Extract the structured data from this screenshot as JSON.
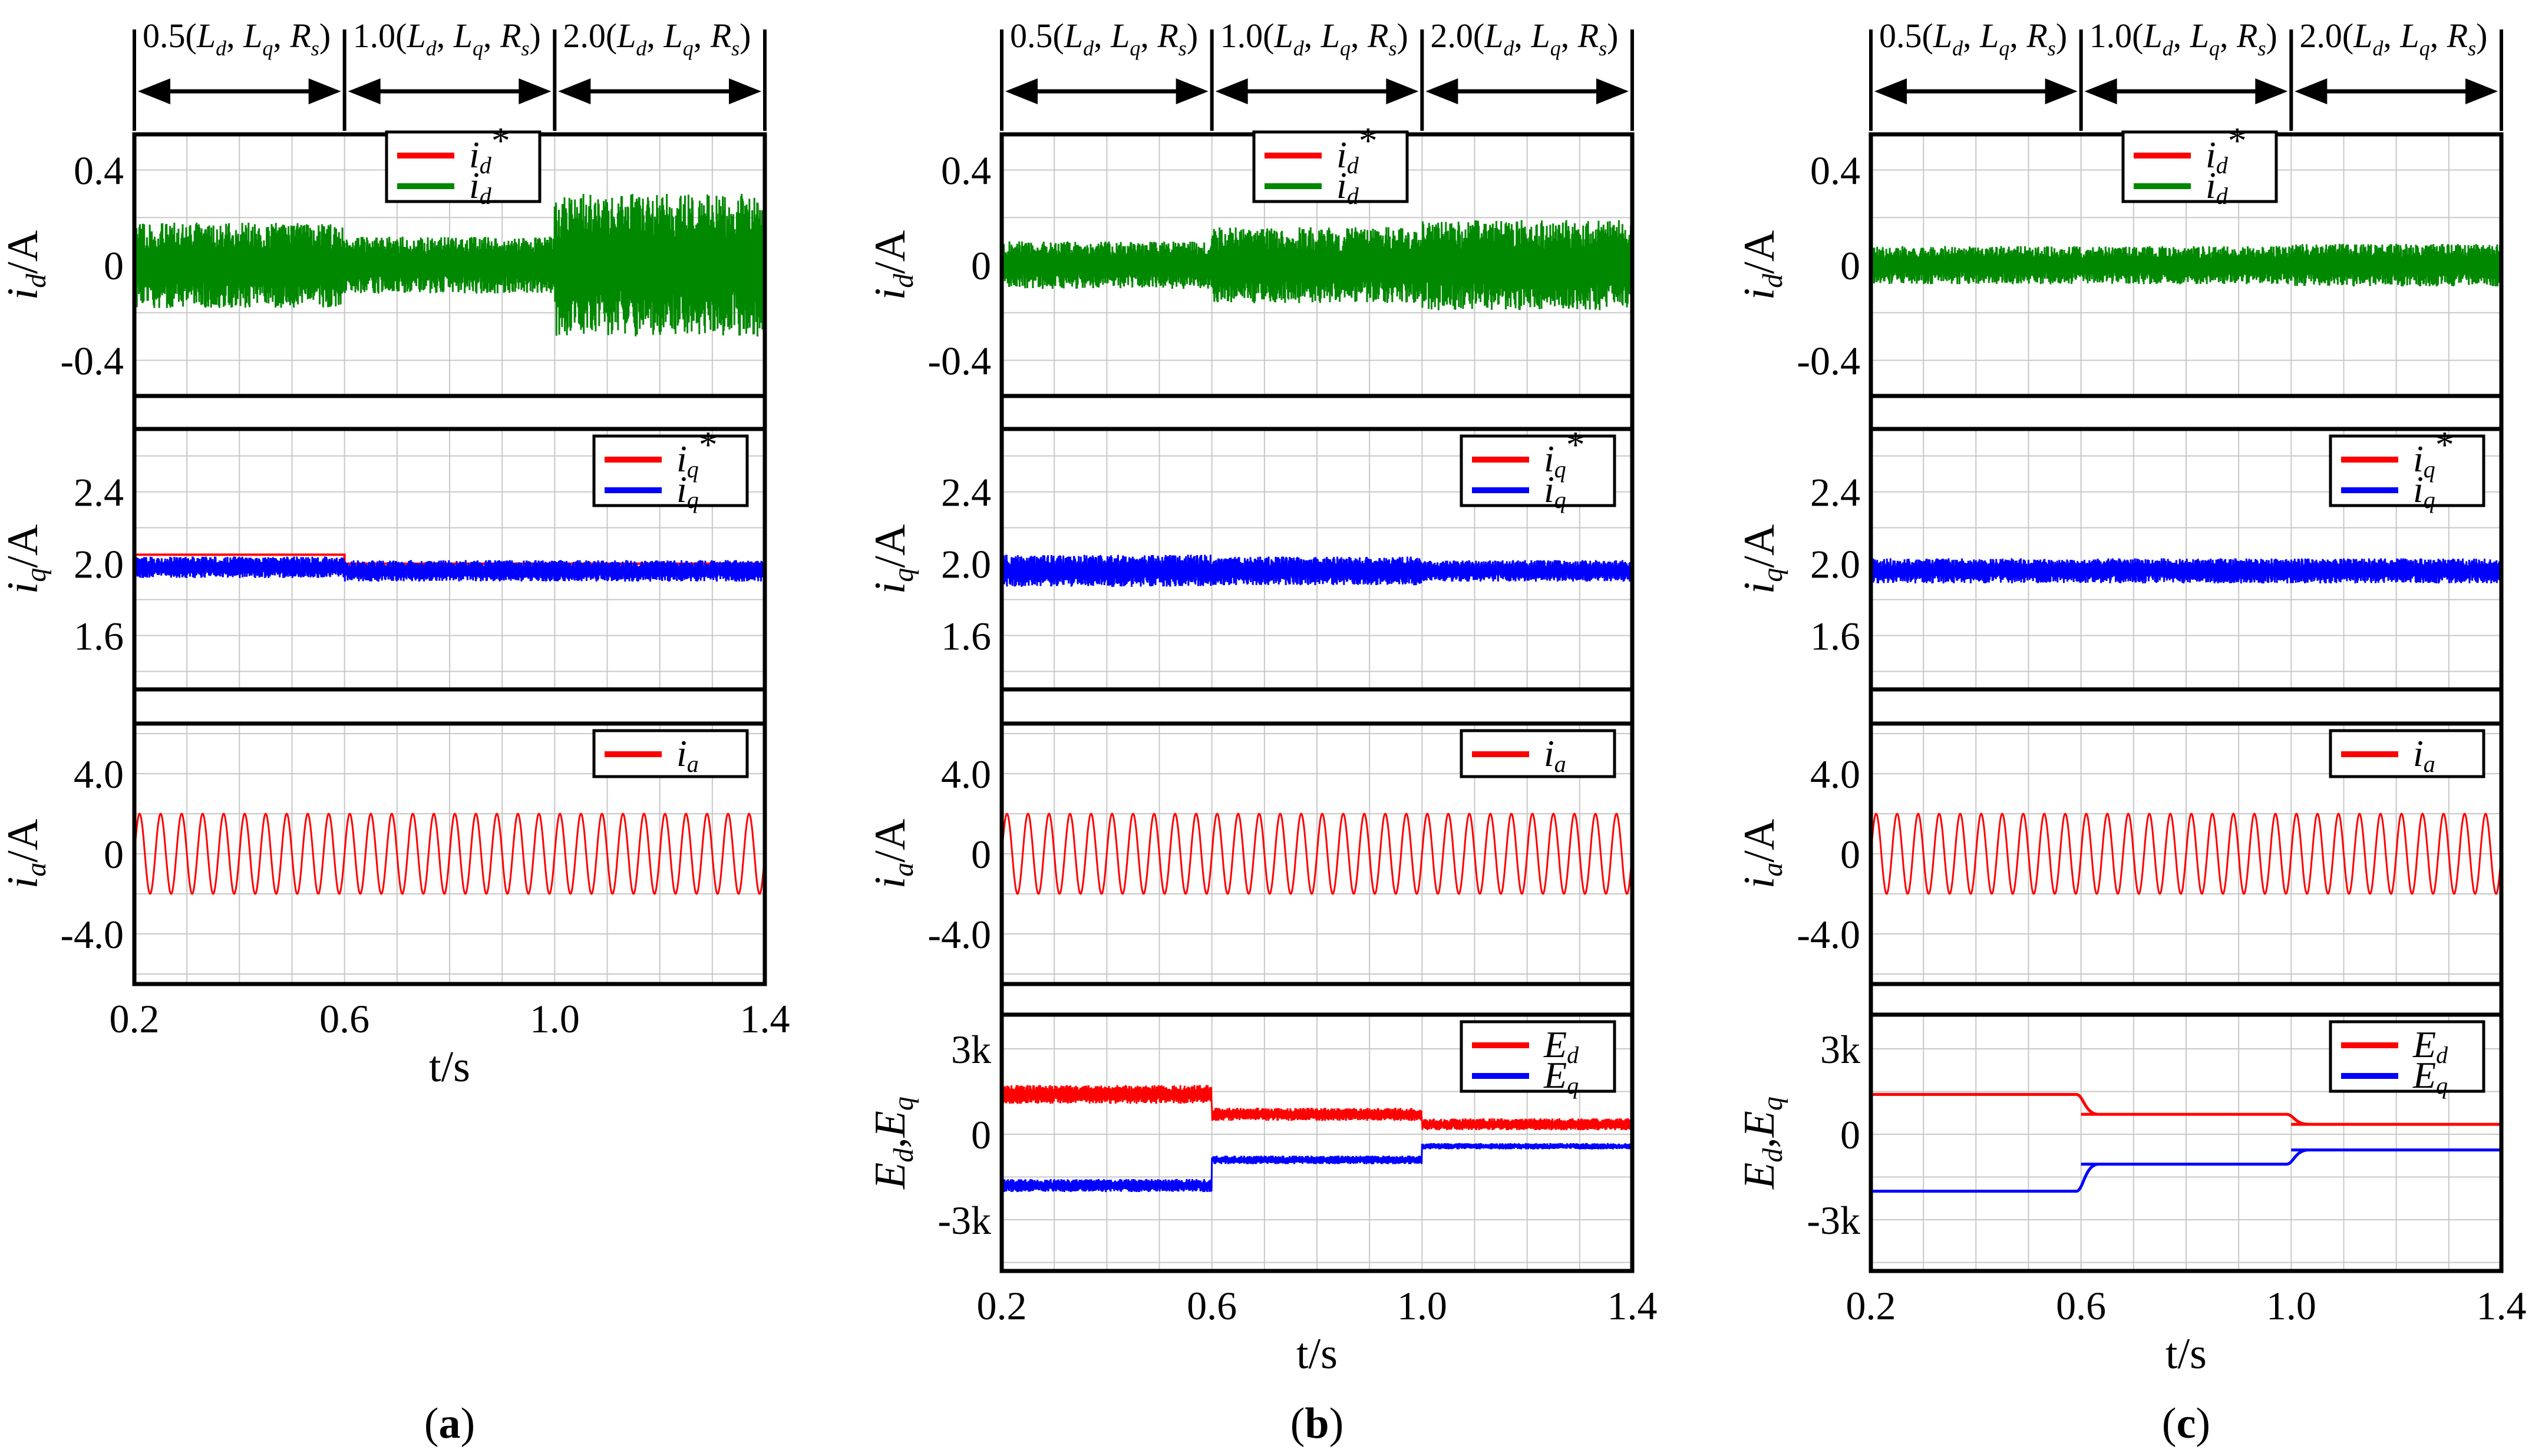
{
  "colors": {
    "red": "#ff0000",
    "green": "#008800",
    "blue": "#0000ff",
    "grid": "#c8c8c8"
  },
  "panel_labels": [
    "a",
    "b",
    "c"
  ],
  "annotations": {
    "seg1": "0.5(",
    "seg2": "1.0(",
    "seg3": "2.0(",
    "params": [
      "L",
      "d",
      ", ",
      "L",
      "q",
      ", ",
      "R",
      "s",
      ")"
    ]
  },
  "chart_data": [
    {
      "panel": "a",
      "type": "line",
      "x_label": "t/s",
      "x_ticks": [
        "0.2",
        "0.6",
        "1.0",
        "1.4"
      ],
      "xlim": [
        0.2,
        1.4
      ],
      "segments": [
        "0.5(Ld, Lq, Rs)",
        "1.0(Ld, Lq, Rs)",
        "2.0(Ld, Lq, Rs)"
      ],
      "subplots": [
        {
          "ylabel_main": "i",
          "ylabel_sub": "d",
          "ylabel_unit": "/A",
          "ylim": [
            -0.55,
            0.55
          ],
          "y_ticks": [
            "0.4",
            "0",
            "-0.4"
          ],
          "y_tick_values": [
            0.4,
            0,
            -0.4
          ],
          "legend": [
            {
              "name": "id*",
              "base": "i",
              "sub": "d",
              "sup": "*",
              "color": "red"
            },
            {
              "name": "id",
              "base": "i",
              "sub": "d",
              "sup": "",
              "color": "green"
            }
          ],
          "series": [
            {
              "name": "id*",
              "kind": "step",
              "color": "red",
              "levels": [
                0,
                0,
                0
              ]
            },
            {
              "name": "id",
              "kind": "noise",
              "color": "green",
              "means": [
                0,
                0,
                0
              ],
              "amps": [
                0.18,
                0.12,
                0.3
              ]
            }
          ]
        },
        {
          "ylabel_main": "i",
          "ylabel_sub": "q",
          "ylabel_unit": "/A",
          "ylim": [
            1.3,
            2.75
          ],
          "y_ticks": [
            "2.4",
            "2.0",
            "1.6"
          ],
          "y_tick_values": [
            2.4,
            2.0,
            1.6
          ],
          "legend": [
            {
              "name": "iq*",
              "base": "i",
              "sub": "q",
              "sup": "*",
              "color": "red"
            },
            {
              "name": "iq",
              "base": "i",
              "sub": "q",
              "sup": "",
              "color": "blue"
            }
          ],
          "series": [
            {
              "name": "iq*",
              "kind": "step",
              "color": "red",
              "levels": [
                2.05,
                2.0,
                2.0
              ]
            },
            {
              "name": "iq",
              "kind": "noise",
              "color": "blue",
              "means": [
                1.98,
                1.96,
                1.96
              ],
              "amps": [
                0.06,
                0.06,
                0.06
              ]
            }
          ]
        },
        {
          "ylabel_main": "i",
          "ylabel_sub": "a",
          "ylabel_unit": "/A",
          "ylim": [
            -6.5,
            6.5
          ],
          "y_ticks": [
            "4.0",
            "0",
            "-4.0"
          ],
          "y_tick_values": [
            4,
            0,
            -4
          ],
          "legend": [
            {
              "name": "ia",
              "base": "i",
              "sub": "a",
              "sup": "",
              "color": "red"
            }
          ],
          "series": [
            {
              "name": "ia",
              "kind": "sine",
              "color": "red",
              "amplitude": 2.0,
              "cycles": 30
            }
          ]
        }
      ]
    },
    {
      "panel": "b",
      "type": "line",
      "x_label": "t/s",
      "x_ticks": [
        "0.2",
        "0.6",
        "1.0",
        "1.4"
      ],
      "xlim": [
        0.2,
        1.4
      ],
      "segments": [
        "0.5(Ld, Lq, Rs)",
        "1.0(Ld, Lq, Rs)",
        "2.0(Ld, Lq, Rs)"
      ],
      "subplots": [
        {
          "ylabel_main": "i",
          "ylabel_sub": "d",
          "ylabel_unit": "/A",
          "ylim": [
            -0.55,
            0.55
          ],
          "y_ticks": [
            "0.4",
            "0",
            "-0.4"
          ],
          "y_tick_values": [
            0.4,
            0,
            -0.4
          ],
          "legend": [
            {
              "name": "id*",
              "base": "i",
              "sub": "d",
              "sup": "*",
              "color": "red"
            },
            {
              "name": "id",
              "base": "i",
              "sub": "d",
              "sup": "",
              "color": "green"
            }
          ],
          "series": [
            {
              "name": "id*",
              "kind": "step",
              "color": "red",
              "levels": [
                0,
                0,
                0
              ]
            },
            {
              "name": "id",
              "kind": "noise",
              "color": "green",
              "means": [
                0,
                0,
                0
              ],
              "amps": [
                0.1,
                0.16,
                0.19
              ]
            }
          ]
        },
        {
          "ylabel_main": "i",
          "ylabel_sub": "q",
          "ylabel_unit": "/A",
          "ylim": [
            1.3,
            2.75
          ],
          "y_ticks": [
            "2.4",
            "2.0",
            "1.6"
          ],
          "y_tick_values": [
            2.4,
            2.0,
            1.6
          ],
          "legend": [
            {
              "name": "iq*",
              "base": "i",
              "sub": "q",
              "sup": "*",
              "color": "red"
            },
            {
              "name": "iq",
              "base": "i",
              "sub": "q",
              "sup": "",
              "color": "blue"
            }
          ],
          "series": [
            {
              "name": "iq*",
              "kind": "step",
              "color": "red",
              "levels": [
                1.97,
                1.97,
                1.97
              ]
            },
            {
              "name": "iq",
              "kind": "noise",
              "color": "blue",
              "means": [
                1.96,
                1.96,
                1.96
              ],
              "amps": [
                0.09,
                0.08,
                0.06
              ]
            }
          ]
        },
        {
          "ylabel_main": "i",
          "ylabel_sub": "a",
          "ylabel_unit": "/A",
          "ylim": [
            -6.5,
            6.5
          ],
          "y_ticks": [
            "4.0",
            "0",
            "-4.0"
          ],
          "y_tick_values": [
            4,
            0,
            -4
          ],
          "legend": [
            {
              "name": "ia",
              "base": "i",
              "sub": "a",
              "sup": "",
              "color": "red"
            }
          ],
          "series": [
            {
              "name": "ia",
              "kind": "sine",
              "color": "red",
              "amplitude": 2.0,
              "cycles": 30
            }
          ]
        },
        {
          "ylabel_main": "E",
          "ylabel_sub": "d",
          "ylabel_main2": "E",
          "ylabel_sub2": "q",
          "ylabel_unit": "",
          "ylim": [
            -4800,
            4200
          ],
          "y_ticks": [
            "3k",
            "0",
            "-3k"
          ],
          "y_tick_values": [
            3000,
            0,
            -3000
          ],
          "legend": [
            {
              "name": "Ed",
              "base": "E",
              "sub": "d",
              "sup": "",
              "color": "red"
            },
            {
              "name": "Eq",
              "base": "E",
              "sub": "q",
              "sup": "",
              "color": "blue"
            }
          ],
          "series": [
            {
              "name": "Ed",
              "kind": "noise",
              "color": "red",
              "means": [
                1400,
                700,
                350
              ],
              "amps": [
                330,
                230,
                210
              ]
            },
            {
              "name": "Eq",
              "kind": "noise",
              "color": "blue",
              "means": [
                -1800,
                -900,
                -420
              ],
              "amps": [
                230,
                150,
                110
              ]
            }
          ]
        }
      ]
    },
    {
      "panel": "c",
      "type": "line",
      "x_label": "t/s",
      "x_ticks": [
        "0.2",
        "0.6",
        "1.0",
        "1.4"
      ],
      "xlim": [
        0.2,
        1.4
      ],
      "segments": [
        "0.5(Ld, Lq, Rs)",
        "1.0(Ld, Lq, Rs)",
        "2.0(Ld, Lq, Rs)"
      ],
      "subplots": [
        {
          "ylabel_main": "i",
          "ylabel_sub": "d",
          "ylabel_unit": "/A",
          "ylim": [
            -0.55,
            0.55
          ],
          "y_ticks": [
            "0.4",
            "0",
            "-0.4"
          ],
          "y_tick_values": [
            0.4,
            0,
            -0.4
          ],
          "legend": [
            {
              "name": "id*",
              "base": "i",
              "sub": "d",
              "sup": "*",
              "color": "red"
            },
            {
              "name": "id",
              "base": "i",
              "sub": "d",
              "sup": "",
              "color": "green"
            }
          ],
          "series": [
            {
              "name": "id*",
              "kind": "step",
              "color": "red",
              "levels": [
                0,
                0,
                0
              ]
            },
            {
              "name": "id",
              "kind": "noise",
              "color": "green",
              "means": [
                0,
                0,
                0
              ],
              "amps": [
                0.08,
                0.08,
                0.09
              ]
            }
          ]
        },
        {
          "ylabel_main": "i",
          "ylabel_sub": "q",
          "ylabel_unit": "/A",
          "ylim": [
            1.3,
            2.75
          ],
          "y_ticks": [
            "2.4",
            "2.0",
            "1.6"
          ],
          "y_tick_values": [
            2.4,
            2.0,
            1.6
          ],
          "legend": [
            {
              "name": "iq*",
              "base": "i",
              "sub": "q",
              "sup": "*",
              "color": "red"
            },
            {
              "name": "iq",
              "base": "i",
              "sub": "q",
              "sup": "",
              "color": "blue"
            }
          ],
          "series": [
            {
              "name": "iq*",
              "kind": "step",
              "color": "red",
              "levels": [
                1.97,
                1.97,
                1.97
              ]
            },
            {
              "name": "iq",
              "kind": "noise",
              "color": "blue",
              "means": [
                1.96,
                1.96,
                1.96
              ],
              "amps": [
                0.07,
                0.07,
                0.07
              ]
            }
          ]
        },
        {
          "ylabel_main": "i",
          "ylabel_sub": "a",
          "ylabel_unit": "/A",
          "ylim": [
            -6.5,
            6.5
          ],
          "y_ticks": [
            "4.0",
            "0",
            "-4.0"
          ],
          "y_tick_values": [
            4,
            0,
            -4
          ],
          "legend": [
            {
              "name": "ia",
              "base": "i",
              "sub": "a",
              "sup": "",
              "color": "red"
            }
          ],
          "series": [
            {
              "name": "ia",
              "kind": "sine",
              "color": "red",
              "amplitude": 2.0,
              "cycles": 30
            }
          ]
        },
        {
          "ylabel_main": "E",
          "ylabel_sub": "d",
          "ylabel_main2": "E",
          "ylabel_sub2": "q",
          "ylabel_unit": "",
          "ylim": [
            -4800,
            4200
          ],
          "y_ticks": [
            "3k",
            "0",
            "-3k"
          ],
          "y_tick_values": [
            3000,
            0,
            -3000
          ],
          "legend": [
            {
              "name": "Ed",
              "base": "E",
              "sub": "d",
              "sup": "",
              "color": "red"
            },
            {
              "name": "Eq",
              "base": "E",
              "sub": "q",
              "sup": "",
              "color": "blue"
            }
          ],
          "series": [
            {
              "name": "Ed",
              "kind": "smooth",
              "color": "red",
              "levels": [
                1400,
                700,
                350
              ]
            },
            {
              "name": "Eq",
              "kind": "smooth",
              "color": "blue",
              "levels": [
                -2000,
                -1050,
                -550
              ]
            }
          ]
        }
      ]
    }
  ]
}
